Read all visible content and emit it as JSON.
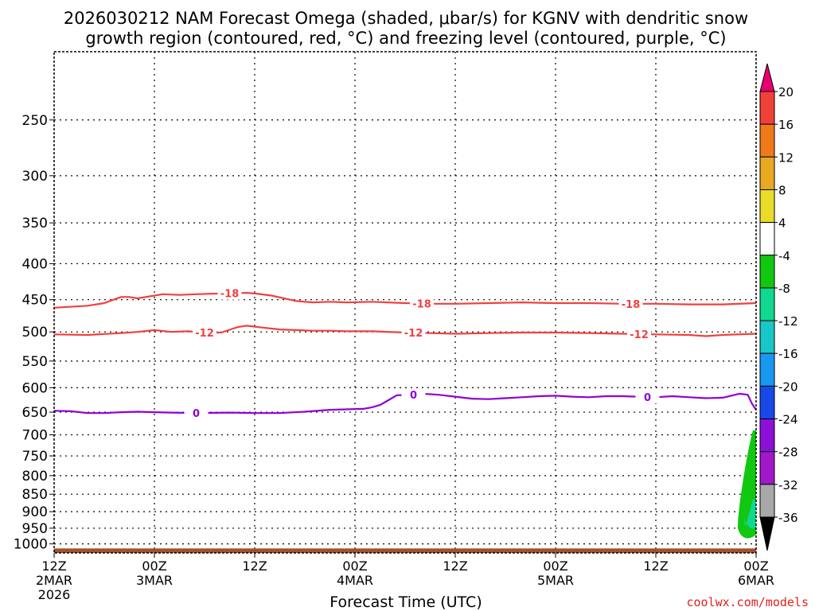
{
  "title_line1": "2026030212 NAM Forecast Omega (shaded, μbar/s) for KGNV with dendritic snow",
  "title_line2": "growth region (contoured, red, °C) and freezing level (contoured, purple, °C)",
  "watermark": "coolwx.com/models",
  "chart_data": {
    "type": "contour",
    "xlabel": "Forecast Time (UTC)",
    "ylabel": "",
    "x_range_hours": [
      0,
      84
    ],
    "y_range_hpa": [
      200,
      1030
    ],
    "y_scale": "log-pressure",
    "grid": true,
    "x_ticks": [
      {
        "hour": 0,
        "line1": "12Z",
        "line2": "2MAR",
        "line3": "2026"
      },
      {
        "hour": 12,
        "line1": "00Z",
        "line2": "3MAR",
        "line3": ""
      },
      {
        "hour": 24,
        "line1": "12Z",
        "line2": "",
        "line3": ""
      },
      {
        "hour": 36,
        "line1": "00Z",
        "line2": "4MAR",
        "line3": ""
      },
      {
        "hour": 48,
        "line1": "12Z",
        "line2": "",
        "line3": ""
      },
      {
        "hour": 60,
        "line1": "00Z",
        "line2": "5MAR",
        "line3": ""
      },
      {
        "hour": 72,
        "line1": "12Z",
        "line2": "",
        "line3": ""
      },
      {
        "hour": 84,
        "line1": "00Z",
        "line2": "6MAR",
        "line3": ""
      }
    ],
    "y_ticks": [
      250,
      300,
      350,
      400,
      450,
      500,
      550,
      600,
      650,
      700,
      750,
      800,
      850,
      900,
      950,
      1000
    ],
    "colorbar": {
      "labels": [
        "20",
        "16",
        "12",
        "8",
        "4",
        "-4",
        "-8",
        "-12",
        "-16",
        "-20",
        "-24",
        "-28",
        "-32",
        "-36"
      ],
      "colors": [
        "#e8006e",
        "#f0403a",
        "#f07a1a",
        "#e8a820",
        "#e8dc28",
        "#ffffff",
        "#10c810",
        "#10d890",
        "#18c8c8",
        "#1898f0",
        "#1848e8",
        "#8c10d8",
        "#a018c8",
        "#a8a8a8",
        "#000000"
      ]
    },
    "series": [
      {
        "name": "-18",
        "color": "#f04040",
        "label_hours": [
          21,
          44,
          69
        ],
        "points": [
          [
            0,
            462
          ],
          [
            4,
            459
          ],
          [
            6,
            455
          ],
          [
            8,
            446
          ],
          [
            9,
            446
          ],
          [
            10,
            448
          ],
          [
            13,
            442
          ],
          [
            15,
            443
          ],
          [
            17,
            442
          ],
          [
            20,
            441
          ],
          [
            23,
            440
          ],
          [
            24,
            441
          ],
          [
            26,
            444
          ],
          [
            29,
            452
          ],
          [
            31,
            454
          ],
          [
            33,
            453
          ],
          [
            35,
            454
          ],
          [
            38,
            453
          ],
          [
            42,
            455
          ],
          [
            45,
            456
          ],
          [
            48,
            456
          ],
          [
            52,
            455
          ],
          [
            56,
            454
          ],
          [
            60,
            455
          ],
          [
            64,
            455
          ],
          [
            68,
            456
          ],
          [
            72,
            456
          ],
          [
            76,
            457
          ],
          [
            80,
            457
          ],
          [
            84,
            455
          ]
        ]
      },
      {
        "name": "-12",
        "color": "#f04040",
        "label_hours": [
          18,
          43,
          70
        ],
        "points": [
          [
            0,
            504
          ],
          [
            4,
            505
          ],
          [
            8,
            502
          ],
          [
            10,
            500
          ],
          [
            12,
            497
          ],
          [
            14,
            500
          ],
          [
            16,
            499
          ],
          [
            18,
            501
          ],
          [
            20,
            501
          ],
          [
            22,
            492
          ],
          [
            23,
            490
          ],
          [
            25,
            493
          ],
          [
            27,
            496
          ],
          [
            29,
            497
          ],
          [
            31,
            498
          ],
          [
            33,
            498
          ],
          [
            35,
            499
          ],
          [
            38,
            499
          ],
          [
            42,
            501
          ],
          [
            45,
            502
          ],
          [
            48,
            503
          ],
          [
            52,
            502
          ],
          [
            56,
            501
          ],
          [
            60,
            501
          ],
          [
            64,
            502
          ],
          [
            68,
            503
          ],
          [
            72,
            504
          ],
          [
            76,
            505
          ],
          [
            78,
            507
          ],
          [
            80,
            505
          ],
          [
            84,
            503
          ]
        ]
      },
      {
        "name": "0",
        "color": "#9000d8",
        "label_hours": [
          17,
          43,
          71
        ],
        "points": [
          [
            0,
            647
          ],
          [
            2,
            648
          ],
          [
            4,
            652
          ],
          [
            6,
            652
          ],
          [
            8,
            650
          ],
          [
            10,
            649
          ],
          [
            12,
            650
          ],
          [
            14,
            651
          ],
          [
            17,
            652
          ],
          [
            21,
            651
          ],
          [
            24,
            652
          ],
          [
            27,
            652
          ],
          [
            30,
            649
          ],
          [
            33,
            645
          ],
          [
            35,
            644
          ],
          [
            37,
            643
          ],
          [
            38,
            640
          ],
          [
            39,
            635
          ],
          [
            40,
            625
          ],
          [
            41,
            615
          ],
          [
            43,
            614
          ],
          [
            44,
            612
          ],
          [
            46,
            614
          ],
          [
            48,
            618
          ],
          [
            50,
            622
          ],
          [
            52,
            623
          ],
          [
            54,
            621
          ],
          [
            56,
            619
          ],
          [
            58,
            617
          ],
          [
            60,
            616
          ],
          [
            62,
            618
          ],
          [
            64,
            619
          ],
          [
            66,
            617
          ],
          [
            68,
            617
          ],
          [
            70,
            618
          ],
          [
            72,
            619
          ],
          [
            74,
            617
          ],
          [
            76,
            619
          ],
          [
            78,
            621
          ],
          [
            80,
            620
          ],
          [
            81,
            616
          ],
          [
            82,
            612
          ],
          [
            83,
            614
          ],
          [
            83.5,
            632
          ],
          [
            84,
            645
          ]
        ]
      }
    ],
    "shaded_regions": [
      {
        "label": "-8",
        "color": "#10c810",
        "start_hour": 81.8,
        "top_hpa": 690,
        "bottom_hpa": 975
      },
      {
        "label": "-12",
        "color": "#10d890",
        "start_hour": 82.6,
        "top_hpa": 865,
        "bottom_hpa": 945
      }
    ],
    "surface": {
      "color": "#a0522d",
      "pressure_hpa": 1015
    }
  }
}
